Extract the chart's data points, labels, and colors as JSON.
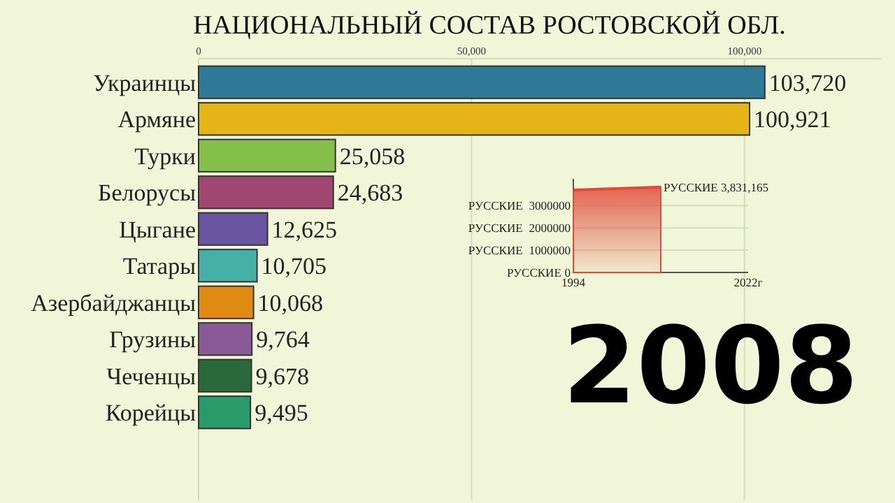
{
  "chart_data": [
    {
      "type": "bar",
      "orientation": "horizontal",
      "title": "НАЦИОНАЛЬНЫЙ СОСТАВ РОСТОВСКОЙ ОБЛ.",
      "categories": [
        "Украинцы",
        "Армяне",
        "Турки",
        "Белорусы",
        "Цыгане",
        "Татары",
        "Азербайджанцы",
        "Грузины",
        "Чеченцы",
        "Корейцы"
      ],
      "values": [
        103720,
        100921,
        25058,
        24683,
        12625,
        10705,
        10068,
        9764,
        9678,
        9495
      ],
      "colors": [
        "#2e7a96",
        "#e5b416",
        "#84bf4a",
        "#a14670",
        "#6a56a0",
        "#45b0a8",
        "#e08a12",
        "#8a5a96",
        "#2a6a3a",
        "#2a9a6a"
      ],
      "xlim": [
        0,
        125000
      ],
      "xticks": [
        0,
        {
          "value": 50000,
          "label": "50,000"
        },
        {
          "value": 100000,
          "label": "100,000"
        }
      ],
      "grid": "x",
      "value_labels": [
        "103,720",
        "100,921",
        "25,058",
        "24,683",
        "12,625",
        "10,705",
        "10,068",
        "9,764",
        "9,678",
        "9,495"
      ],
      "annotations": [
        "2008"
      ]
    },
    {
      "type": "area",
      "x": [
        1994,
        2008
      ],
      "series": [
        {
          "color": "#e04a3a",
          "values": [
            3700000,
            3831165
          ]
        }
      ],
      "xlim": [
        1994,
        2022
      ],
      "xticks": [
        1994,
        {
          "value": 2022,
          "label": "2022г"
        }
      ],
      "ylim": [
        0,
        4200000
      ],
      "yticks": [
        0,
        1000000,
        2000000,
        3000000
      ],
      "ylabel": "РУССКИЕ",
      "grid": "y",
      "annotations": [
        {
          "text": "РУССКИЕ 3,831,165",
          "x": 2008,
          "y": 3831165
        }
      ]
    }
  ]
}
